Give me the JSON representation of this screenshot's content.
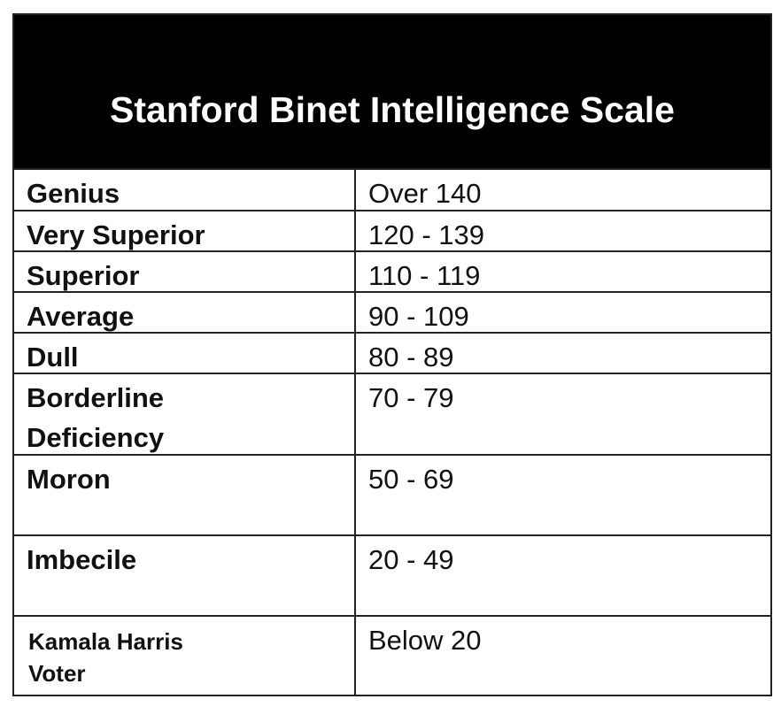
{
  "title": "Stanford Binet Intelligence Scale",
  "rows": [
    {
      "label": "Genius",
      "range": "Over 140"
    },
    {
      "label": "Very Superior",
      "range": "120 - 139"
    },
    {
      "label": "Superior",
      "range": "110 - 119"
    },
    {
      "label": "Average",
      "range": "90 - 109"
    },
    {
      "label": "Dull",
      "range": "80 - 89"
    },
    {
      "label": "Borderline Deficiency",
      "range": "70 - 79"
    },
    {
      "label": "Moron",
      "range": "50 - 69"
    },
    {
      "label": "Imbecile",
      "range": "20 - 49"
    },
    {
      "label": "Kamala Harris Voter",
      "range": "Below 20"
    }
  ]
}
